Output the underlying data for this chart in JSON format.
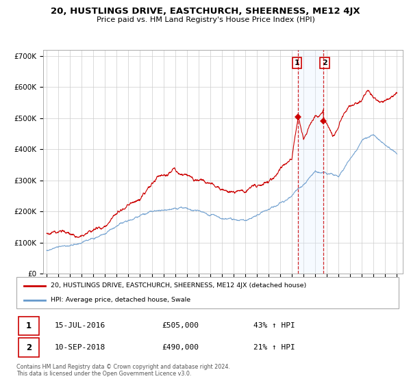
{
  "title": "20, HUSTLINGS DRIVE, EASTCHURCH, SHEERNESS, ME12 4JX",
  "subtitle": "Price paid vs. HM Land Registry's House Price Index (HPI)",
  "hpi_label": "HPI: Average price, detached house, Swale",
  "property_label": "20, HUSTLINGS DRIVE, EASTCHURCH, SHEERNESS, ME12 4JX (detached house)",
  "sale1_date": "15-JUL-2016",
  "sale1_price": 505000,
  "sale1_pct": "43% ↑ HPI",
  "sale2_date": "10-SEP-2018",
  "sale2_price": 490000,
  "sale2_pct": "21% ↑ HPI",
  "ylim": [
    0,
    720000
  ],
  "yticks": [
    0,
    100000,
    200000,
    300000,
    400000,
    500000,
    600000,
    700000
  ],
  "red_color": "#cc0000",
  "blue_color": "#6699cc",
  "blue_shade": "#ddeeff",
  "footer": "Contains HM Land Registry data © Crown copyright and database right 2024.\nThis data is licensed under the Open Government Licence v3.0.",
  "sale1_year": 2016.542,
  "sale2_year": 2018.708
}
